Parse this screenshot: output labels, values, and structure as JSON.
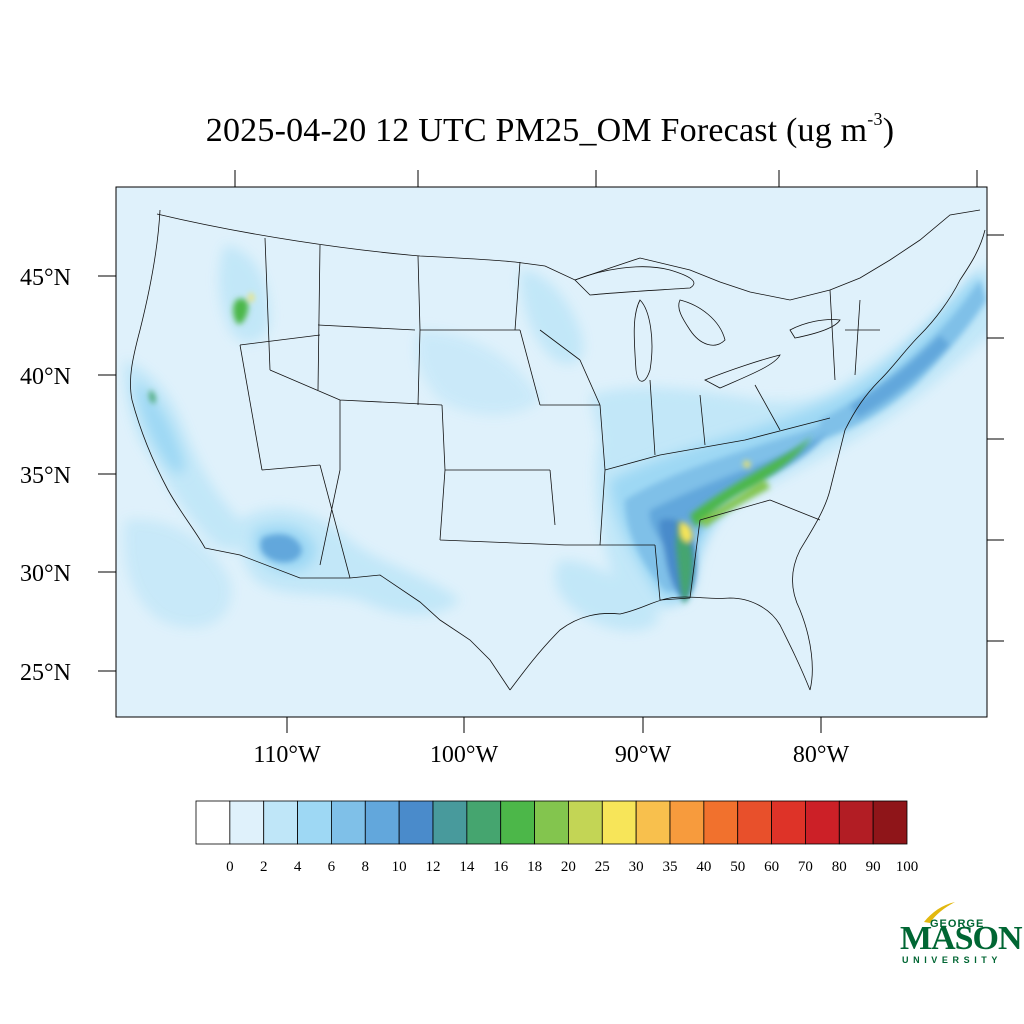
{
  "title": {
    "text": "2025-04-20 12 UTC PM25_OM Forecast (ug m",
    "superscript": "-3",
    "suffix": ")"
  },
  "map": {
    "projection": "lambert-conformal",
    "region": "Contiguous United States",
    "latitude_labels": [
      "45°N",
      "40°N",
      "35°N",
      "30°N",
      "25°N"
    ],
    "longitude_labels": [
      "110°W",
      "100°W",
      "90°W",
      "80°W"
    ],
    "background_color": "#dff1fb",
    "boundary_color": "#111111"
  },
  "colorbar": {
    "labels": [
      "0",
      "2",
      "4",
      "6",
      "8",
      "10",
      "12",
      "14",
      "16",
      "18",
      "20",
      "25",
      "30",
      "35",
      "40",
      "50",
      "60",
      "70",
      "80",
      "90",
      "100"
    ],
    "colors": [
      "#ffffff",
      "#dff1fb",
      "#bfe6f8",
      "#9ed8f4",
      "#7fc0e8",
      "#62a7dc",
      "#4a8bcb",
      "#489a9c",
      "#45a56f",
      "#4cb749",
      "#83c54e",
      "#c3d555",
      "#f7e559",
      "#f8c04d",
      "#f79b3d",
      "#f1712d",
      "#e8502b",
      "#de3328",
      "#cc2027",
      "#b21d24",
      "#8f1519"
    ]
  },
  "logo": {
    "line1": "GEORGE",
    "line2": "MASON",
    "line3": "UNIVERSITY",
    "color": "#006633",
    "accent": "#e2b80f"
  }
}
